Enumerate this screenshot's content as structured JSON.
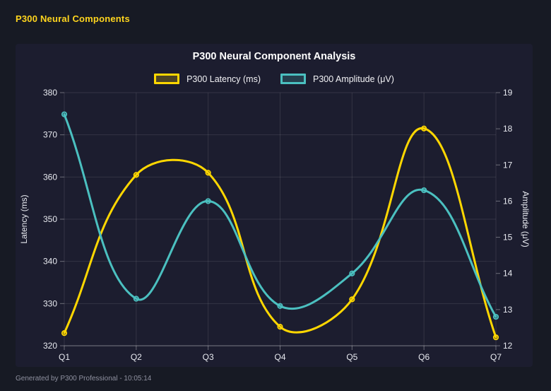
{
  "header": {
    "title": "P300 Neural Components"
  },
  "footer": {
    "text": "Generated by P300 Professional - 10:05:14"
  },
  "colors": {
    "page_background": "#171a24",
    "panel_background": "#1c1d2f",
    "header_accent": "#ffd51e",
    "title_text": "#ffffff",
    "tick_text": "#e8eaf0",
    "grid_line": "rgba(255,255,255,0.10)",
    "axis_border": "rgba(255,255,255,0.35)",
    "footer_text": "#8f91a0"
  },
  "chart_data": {
    "type": "line",
    "title": "P300 Neural Component Analysis",
    "categories": [
      "Q1",
      "Q2",
      "Q3",
      "Q4",
      "Q5",
      "Q6",
      "Q7"
    ],
    "series": [
      {
        "name": "P300 Latency (ms)",
        "axis": "left",
        "color": "#ffd700",
        "marker_fill": "rgba(255,215,0,0.22)",
        "values": [
          323,
          360.5,
          361,
          324.5,
          331,
          371.5,
          322
        ]
      },
      {
        "name": "P300 Amplitude (μV)",
        "axis": "right",
        "color": "#4bc0c0",
        "marker_fill": "rgba(75,192,192,0.22)",
        "values": [
          18.4,
          13.3,
          16.0,
          13.1,
          14.0,
          16.3,
          12.8
        ]
      }
    ],
    "left_axis": {
      "label": "Latency (ms)",
      "min": 320,
      "max": 380,
      "step": 10
    },
    "right_axis": {
      "label": "Amplitude (μV)",
      "min": 12,
      "max": 19,
      "step": 1
    },
    "grid": true,
    "legend_position": "top",
    "line_tension": 0.4
  }
}
